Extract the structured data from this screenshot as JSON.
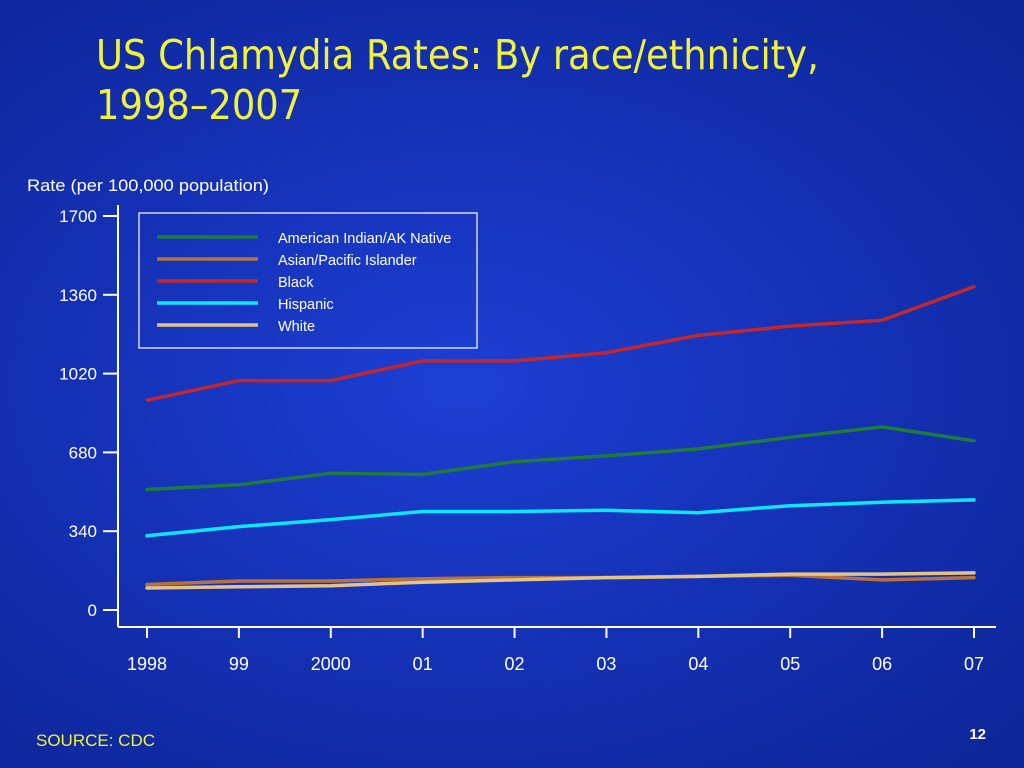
{
  "slide": {
    "title_line1": "US Chlamydia Rates: By race/ethnicity,",
    "title_line2": "1998–2007",
    "source": "SOURCE: CDC",
    "page_number": "12"
  },
  "colors": {
    "background": "#1532b8",
    "title": "#f2f23a",
    "axis": "#ffffff"
  },
  "chart_data": {
    "type": "line",
    "title": "",
    "xlabel": "",
    "ylabel": "Rate (per 100,000 population)",
    "x": [
      "1998",
      "99",
      "2000",
      "01",
      "02",
      "03",
      "04",
      "05",
      "06",
      "07"
    ],
    "ylim": [
      0,
      1700
    ],
    "yticks": [
      "1700",
      "1360",
      "1020",
      "680",
      "340",
      "0"
    ],
    "grid": false,
    "legend_position": "top-left",
    "series": [
      {
        "name": "American Indian/AK Native",
        "color": "#1f7a3c",
        "values": [
          520,
          540,
          590,
          585,
          640,
          665,
          695,
          745,
          790,
          730
        ]
      },
      {
        "name": "Asian/Pacific Islander",
        "color": "#b8733c",
        "values": [
          110,
          125,
          125,
          135,
          140,
          140,
          145,
          150,
          130,
          140
        ]
      },
      {
        "name": "Black",
        "color": "#c0282d",
        "values": [
          905,
          990,
          990,
          1075,
          1075,
          1110,
          1185,
          1225,
          1250,
          1395
        ]
      },
      {
        "name": "Hispanic",
        "color": "#0ee6ff",
        "values": [
          320,
          360,
          390,
          425,
          425,
          430,
          420,
          450,
          465,
          475
        ]
      },
      {
        "name": "White",
        "color": "#e2c48a",
        "values": [
          95,
          100,
          105,
          120,
          130,
          140,
          145,
          155,
          155,
          160
        ]
      }
    ]
  }
}
